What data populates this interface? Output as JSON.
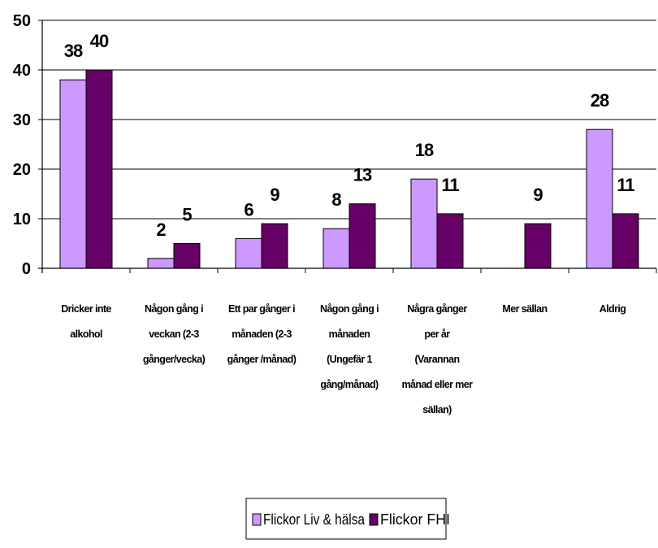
{
  "chart_data": {
    "type": "bar",
    "title": "",
    "xlabel": "",
    "ylabel": "",
    "ylim": [
      0,
      50
    ],
    "yticks": [
      0,
      10,
      20,
      30,
      40,
      50
    ],
    "grid": true,
    "legend_position": "bottom",
    "categories": [
      [
        "Dricker inte",
        "alkohol"
      ],
      [
        "Någon gång i",
        "veckan (2-3",
        "gånger/vecka)"
      ],
      [
        "Ett par gånger i",
        "månaden (2-3",
        "gånger /månad)"
      ],
      [
        "Någon gång i",
        "månaden",
        "(Ungefär 1",
        "gång/månad)"
      ],
      [
        "Några gånger",
        "per år",
        "(Varannan",
        "månad eller mer",
        "sällan)"
      ],
      [
        "Mer sällan"
      ],
      [
        "Aldrig"
      ]
    ],
    "series": [
      {
        "name": "Flickor Liv & hälsa",
        "color": "#cc99ff",
        "values": [
          38,
          2,
          6,
          8,
          18,
          null,
          28
        ]
      },
      {
        "name": "Flickor FHI",
        "color": "#660066",
        "values": [
          40,
          5,
          9,
          13,
          11,
          9,
          11
        ]
      }
    ]
  }
}
